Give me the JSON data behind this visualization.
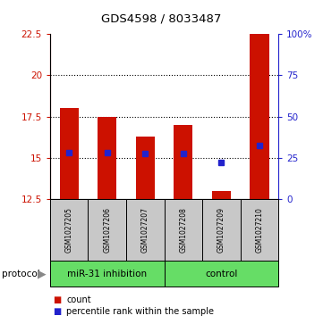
{
  "title": "GDS4598 / 8033487",
  "samples": [
    "GSM1027205",
    "GSM1027206",
    "GSM1027207",
    "GSM1027208",
    "GSM1027209",
    "GSM1027210"
  ],
  "bar_bottoms": [
    12.5,
    12.5,
    12.5,
    12.5,
    12.5,
    12.5
  ],
  "bar_tops": [
    18.0,
    17.5,
    16.3,
    17.0,
    13.0,
    22.5
  ],
  "blue_y_values": [
    15.3,
    15.3,
    15.25,
    15.25,
    14.75,
    15.75
  ],
  "bar_color": "#cc1100",
  "blue_color": "#2222cc",
  "ylim_left": [
    12.5,
    22.5
  ],
  "ylim_right": [
    0,
    100
  ],
  "yticks_left": [
    12.5,
    15.0,
    17.5,
    20.0,
    22.5
  ],
  "ytick_labels_left": [
    "12.5",
    "15",
    "17.5",
    "20",
    "22.5"
  ],
  "yticks_right": [
    0,
    25,
    50,
    75,
    100
  ],
  "ytick_labels_right": [
    "0",
    "25",
    "50",
    "75",
    "100%"
  ],
  "dotted_lines": [
    15.0,
    17.5,
    20.0
  ],
  "group_inhibition_label": "miR-31 inhibition",
  "group_control_label": "control",
  "protocol_label": "protocol",
  "legend_count_label": "count",
  "legend_percentile_label": "percentile rank within the sample",
  "background_color": "#ffffff",
  "plot_bg_color": "#ffffff",
  "label_area_color": "#c8c8c8",
  "group_area_color": "#66dd66",
  "bar_width": 0.5
}
